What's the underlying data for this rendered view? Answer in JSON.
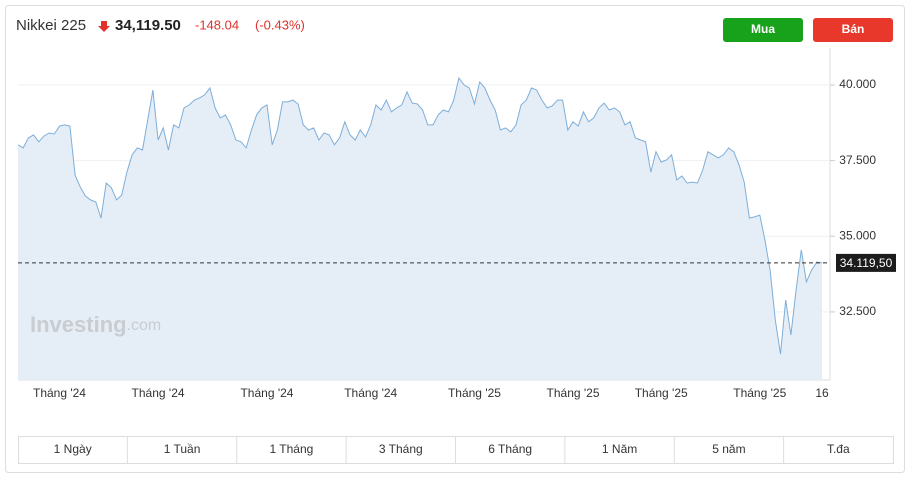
{
  "header": {
    "name": "Nikkei 225",
    "price": "34,119.50",
    "change": "-148.04",
    "change_percent": "(-0.43%)"
  },
  "buttons": {
    "buy": "Mua",
    "sell": "Bán"
  },
  "watermark": {
    "brand": "Investing",
    "suffix": ".com"
  },
  "ranges": [
    "1 Ngày",
    "1 Tuần",
    "1 Tháng",
    "3 Tháng",
    "6 Tháng",
    "1 Năm",
    "5 năm",
    "T.đa"
  ],
  "chart_data": {
    "type": "area",
    "color": "#7eaed8",
    "fill": "#e5eef7",
    "categories": [
      null,
      null,
      null,
      null,
      null,
      null,
      null,
      null,
      "Tháng '24",
      null,
      null,
      null,
      null,
      null,
      null,
      null,
      null,
      null,
      null,
      null,
      null,
      null,
      null,
      null,
      null,
      null,
      null,
      "Tháng '24",
      null,
      null,
      null,
      null,
      null,
      null,
      null,
      null,
      null,
      null,
      null,
      null,
      null,
      null,
      null,
      null,
      null,
      null,
      null,
      null,
      "Tháng '24",
      null,
      null,
      null,
      null,
      null,
      null,
      null,
      null,
      null,
      null,
      null,
      null,
      null,
      null,
      null,
      null,
      null,
      null,
      null,
      "Tháng '24",
      null,
      null,
      null,
      null,
      null,
      null,
      null,
      null,
      null,
      null,
      null,
      null,
      null,
      null,
      null,
      null,
      null,
      null,
      null,
      "Tháng '25",
      null,
      null,
      null,
      null,
      null,
      null,
      null,
      null,
      null,
      null,
      null,
      null,
      null,
      null,
      null,
      null,
      null,
      null,
      "Tháng '25",
      null,
      null,
      null,
      null,
      null,
      null,
      null,
      null,
      null,
      null,
      null,
      null,
      null,
      null,
      null,
      null,
      "Tháng '25",
      null,
      null,
      null,
      null,
      null,
      null,
      null,
      null,
      null,
      null,
      null,
      null,
      null,
      null,
      null,
      null,
      null,
      null,
      "Tháng '25",
      null,
      null,
      null,
      null,
      null,
      null,
      null,
      null,
      null,
      null,
      null,
      "16"
    ],
    "values": [
      38020,
      37920,
      38250,
      38350,
      38120,
      38310,
      38410,
      38380,
      38640,
      38680,
      38640,
      37020,
      36630,
      36330,
      36200,
      36130,
      35600,
      36760,
      36600,
      36200,
      36360,
      37120,
      37690,
      37920,
      37850,
      38840,
      39830,
      38180,
      38580,
      37850,
      38680,
      38580,
      39240,
      39340,
      39500,
      39570,
      39670,
      39900,
      39240,
      38910,
      39010,
      38680,
      38180,
      38120,
      37920,
      38510,
      39010,
      39240,
      39340,
      38020,
      38510,
      39440,
      39440,
      39500,
      39370,
      38680,
      38510,
      38580,
      38180,
      38410,
      38350,
      38020,
      38250,
      38780,
      38350,
      38180,
      38510,
      38280,
      38680,
      39340,
      39170,
      39500,
      39110,
      39240,
      39340,
      39770,
      39400,
      39370,
      39170,
      38680,
      38680,
      39010,
      39170,
      39110,
      39500,
      40230,
      40000,
      39900,
      39370,
      40100,
      39900,
      39500,
      39170,
      38510,
      38580,
      38450,
      38680,
      39340,
      39500,
      39900,
      39830,
      39500,
      39240,
      39310,
      39500,
      39500,
      38510,
      38780,
      38640,
      39110,
      38780,
      38910,
      39240,
      39400,
      39170,
      39240,
      39110,
      38680,
      38780,
      38250,
      38180,
      38120,
      37120,
      37790,
      37450,
      37520,
      37690,
      36860,
      36990,
      36760,
      36790,
      36760,
      37190,
      37790,
      37690,
      37590,
      37690,
      37920,
      37790,
      37360,
      36790,
      35600,
      35640,
      35700,
      34880,
      33880,
      32230,
      31110,
      32890,
      31740,
      33220,
      34550,
      33490,
      33880,
      34150,
      34119.5
    ],
    "ylim": [
      30250,
      41220
    ],
    "yticks": [
      {
        "value": 32500,
        "label": "32.500"
      },
      {
        "value": 35000,
        "label": "35.000"
      },
      {
        "value": 37500,
        "label": "37.500"
      },
      {
        "value": 40000,
        "label": "40.000"
      }
    ],
    "current_price": {
      "value": 34119.5,
      "label": "34.119,50"
    },
    "grid": true
  }
}
